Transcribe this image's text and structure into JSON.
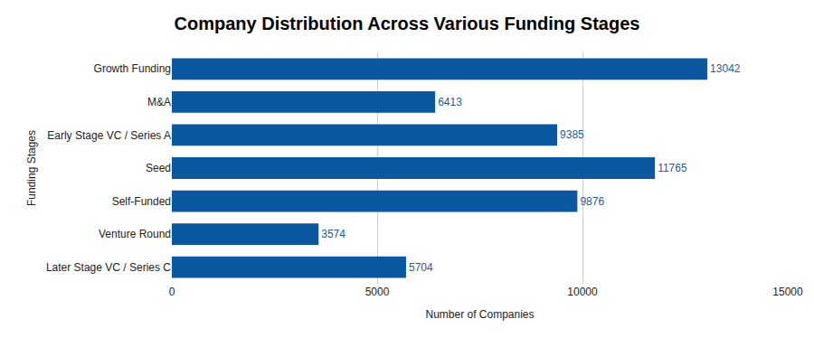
{
  "chart_data": {
    "type": "bar",
    "orientation": "horizontal",
    "title": "Company Distribution Across Various Funding Stages",
    "x_label": "Number of Companies",
    "y_label": "Funding Stages",
    "categories": [
      "Growth Funding",
      "M&A",
      "Early Stage VC / Series A",
      "Seed",
      "Self-Funded",
      "Venture Round",
      "Later Stage VC / Series C"
    ],
    "values": [
      13042,
      6413,
      9385,
      11765,
      9876,
      3574,
      5704
    ],
    "color": "#0b57a0",
    "xlim": [
      0,
      15000
    ],
    "xticks": [
      0,
      5000,
      10000,
      15000
    ],
    "grid": true,
    "data_labels": true
  }
}
